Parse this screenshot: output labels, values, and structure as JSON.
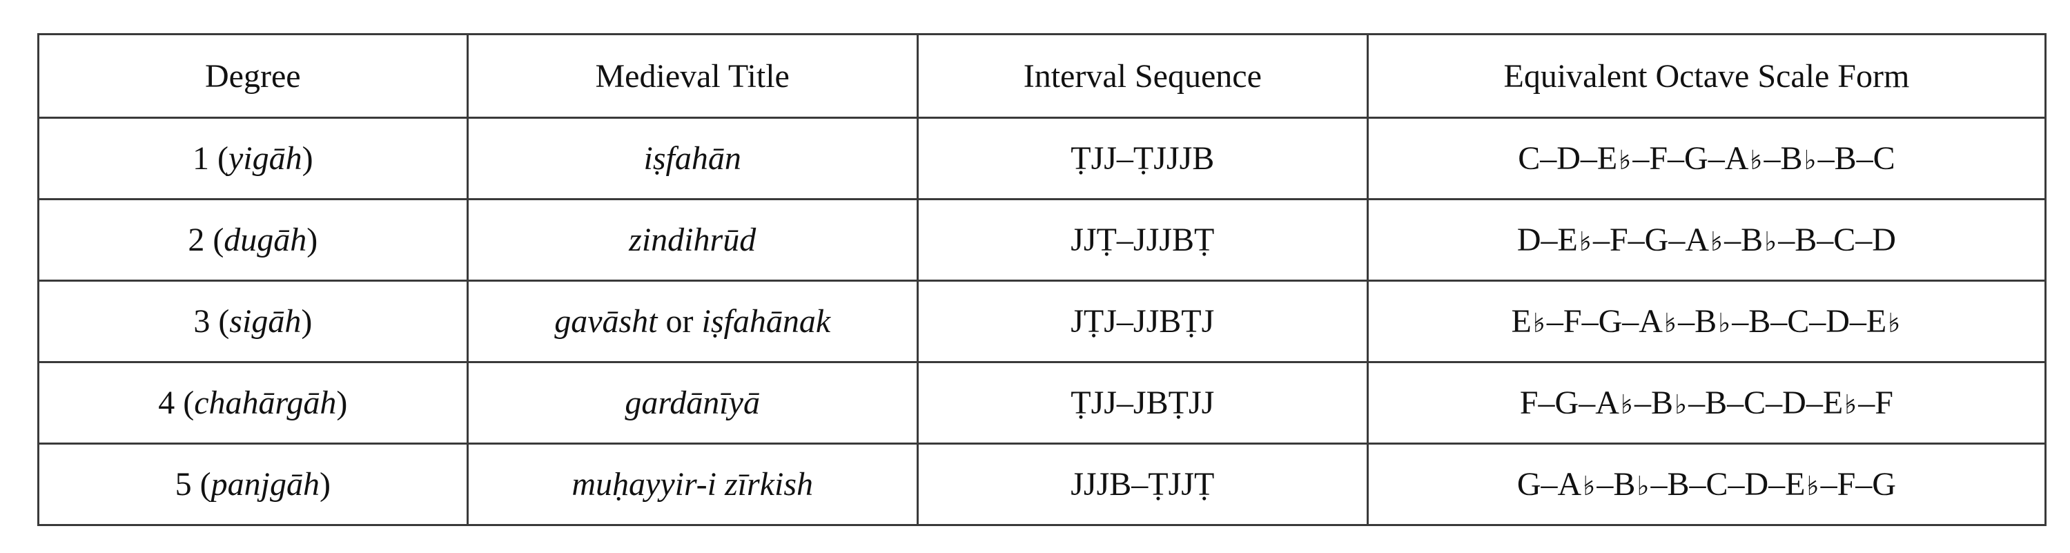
{
  "table": {
    "headers": [
      "Degree",
      "Medieval Title",
      "Interval Sequence",
      "Equivalent Octave Scale Form"
    ],
    "rows": [
      {
        "degree_num": "1",
        "degree_name": "yigāh",
        "title_a": "iṣfahān",
        "title_or": "",
        "title_b": "",
        "intervals": "ṬJJ–ṬJJJB",
        "scale": "C–D–E𝄳–F–G–A𝄳–B♭–B–C"
      },
      {
        "degree_num": "2",
        "degree_name": "dugāh",
        "title_a": "zindihrūd",
        "title_or": "",
        "title_b": "",
        "intervals": "JJṬ–JJJBṬ",
        "scale": "D–E𝄳–F–G–A𝄳–B♭–B–C–D"
      },
      {
        "degree_num": "3",
        "degree_name": "sigāh",
        "title_a": "gavāsht",
        "title_or": " or ",
        "title_b": "iṣfahānak",
        "intervals": "JṬJ–JJBṬJ",
        "scale": "E𝄳–F–G–A𝄳–B♭–B–C–D–E𝄳"
      },
      {
        "degree_num": "4",
        "degree_name": "chahārgāh",
        "title_a": "gardānīyā",
        "title_or": "",
        "title_b": "",
        "intervals": "ṬJJ–JBṬJJ",
        "scale": "F–G–A𝄳–B♭–B–C–D–E𝄳–F"
      },
      {
        "degree_num": "5",
        "degree_name": "panjgāh",
        "title_a": "muḥayyir-i zīrkish",
        "title_or": "",
        "title_b": "",
        "intervals": "JJJB–ṬJJṬ",
        "scale": "G–A𝄳–B♭–B–C–D–E𝄳–F–G"
      }
    ]
  }
}
